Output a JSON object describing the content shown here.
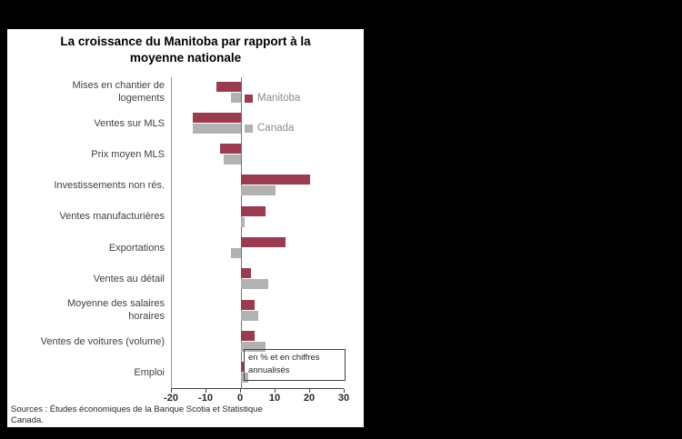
{
  "window": {
    "background": "#000000",
    "panel_background": "#ffffff"
  },
  "chart": {
    "title_line1": "La croissance du Manitoba par rapport à la",
    "title_line2": "moyenne nationale",
    "annotation_line1": "en % et en chiffres",
    "annotation_line2": "annualisés",
    "source_line1": "Sources : Études économiques de la Banque Scotia et Statistique",
    "source_line2": "Canada."
  },
  "chart_data": {
    "type": "bar",
    "orientation": "horizontal",
    "title": "La croissance du Manitoba par rapport à la moyenne nationale",
    "annotation": "en % et en chiffres annualisés",
    "source": "Sources : Études économiques de la Banque Scotia et Statistique Canada.",
    "categories": [
      "Mises en chantier de\nlogements",
      "Ventes sur MLS",
      "Prix moyen MLS",
      "Investissements non rés.",
      "Ventes manufacturières",
      "Exportations",
      "Ventes au détail",
      "Moyenne des salaires\nhoraires",
      "Ventes de voitures (volume)",
      "Emploi"
    ],
    "series": [
      {
        "name": "Manitoba",
        "color": "#9a3b4f",
        "values": [
          -7,
          -14,
          -6,
          20,
          7,
          13,
          3,
          4,
          4,
          1
        ]
      },
      {
        "name": "Canada",
        "color": "#b2b2b2",
        "values": [
          -3,
          -14,
          -5,
          10,
          1,
          -3,
          8,
          5,
          7,
          2
        ]
      }
    ],
    "xlim": [
      -20,
      30
    ],
    "xticks": [
      -20,
      -10,
      0,
      10,
      20,
      30
    ],
    "legend_position": "inside-top",
    "grid": false
  }
}
